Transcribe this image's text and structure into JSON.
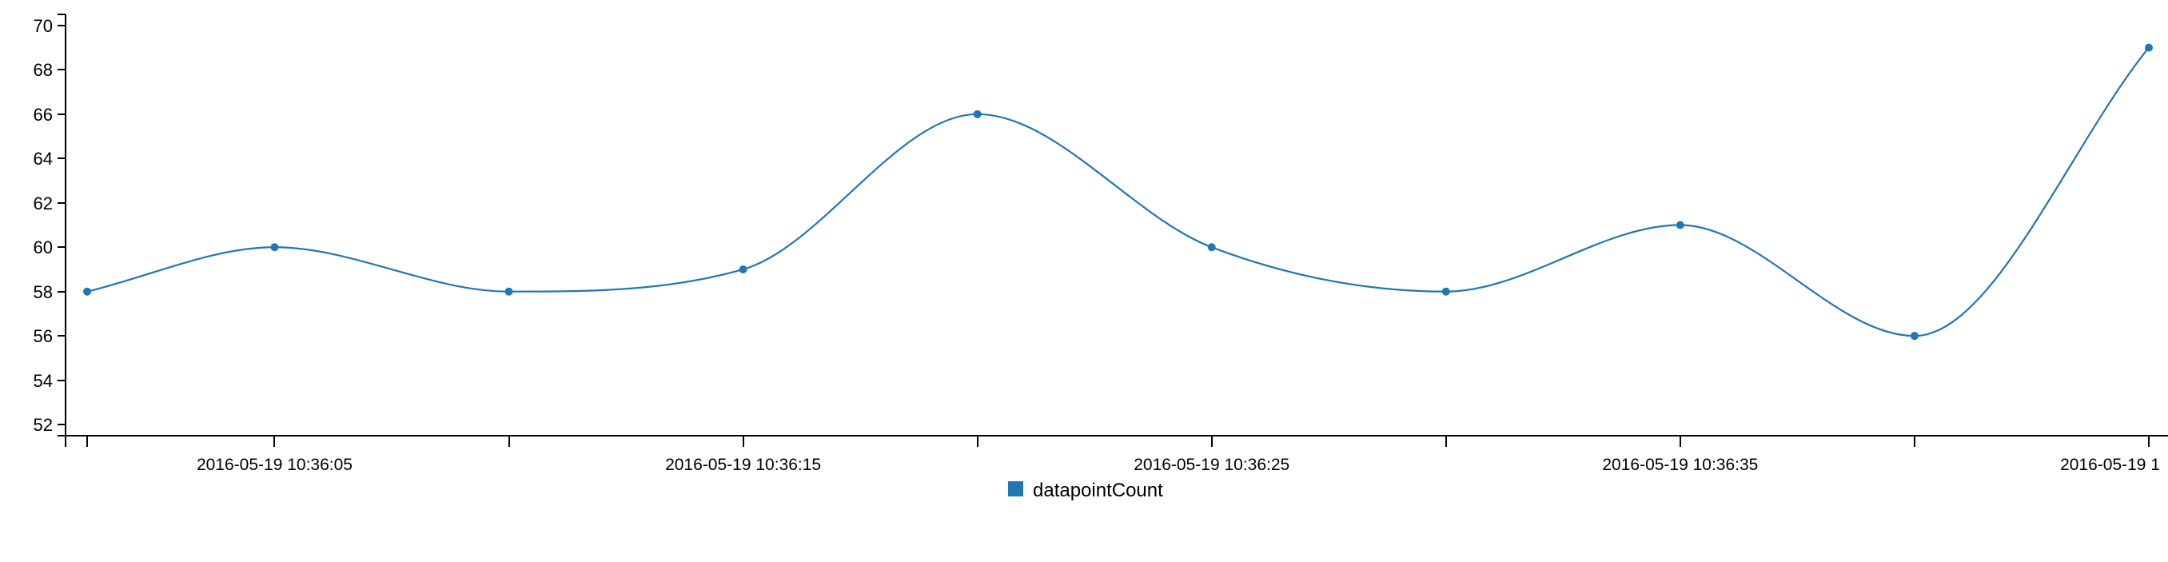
{
  "chart_data": {
    "type": "line",
    "interpolation": "smooth",
    "x": [
      "2016-05-19 10:36:01",
      "2016-05-19 10:36:05",
      "2016-05-19 10:36:10",
      "2016-05-19 10:36:15",
      "2016-05-19 10:36:20",
      "2016-05-19 10:36:25",
      "2016-05-19 10:36:30",
      "2016-05-19 10:36:35",
      "2016-05-19 10:36:40",
      "2016-05-19 10:36:45"
    ],
    "series": [
      {
        "name": "datapointCount",
        "color": "#1f77b4",
        "values": [
          58,
          60,
          58,
          59,
          66,
          60,
          58,
          61,
          56,
          69
        ]
      }
    ],
    "x_tick_labels": [
      "2016-05-19 10:36:05",
      "2016-05-19 10:36:15",
      "2016-05-19 10:36:25",
      "2016-05-19 10:36:35",
      "2016-05-19 1"
    ],
    "ylim": [
      51.5,
      70.5
    ],
    "y_ticks": [
      52,
      54,
      56,
      58,
      60,
      62,
      64,
      66,
      68,
      70
    ],
    "grid": false,
    "legend_position": "bottom-center"
  }
}
